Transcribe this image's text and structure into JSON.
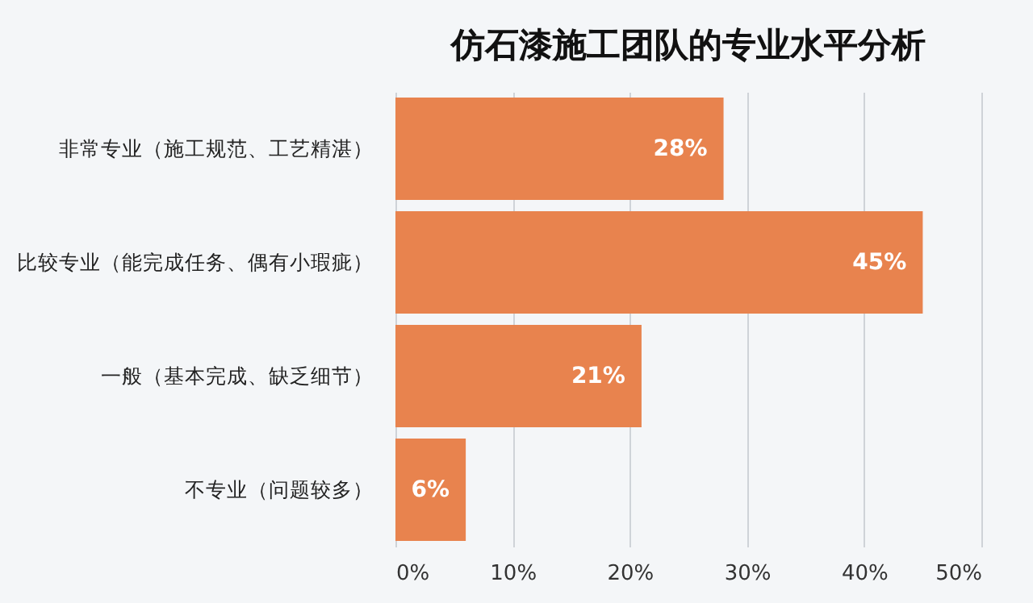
{
  "chart_data": {
    "type": "bar",
    "orientation": "horizontal",
    "title": "仿石漆施工团队的专业水平分析",
    "categories": [
      "非常专业（施工规范、工艺精湛）",
      "比较专业（能完成任务、偶有小瑕疵）",
      "一般（基本完成、缺乏细节）",
      "不专业（问题较多）"
    ],
    "values": [
      28,
      45,
      21,
      6
    ],
    "color": "#e8834e",
    "value_labels": [
      "28%",
      "45%",
      "21%",
      "6%"
    ],
    "xlim": [
      0,
      50
    ],
    "xticks": [
      {
        "value": 0,
        "label": "0%"
      },
      {
        "value": 10,
        "label": "10%"
      },
      {
        "value": 20,
        "label": "20%"
      },
      {
        "value": 30,
        "label": "30%"
      },
      {
        "value": 40,
        "label": "40%"
      },
      {
        "value": 50,
        "label": "50%"
      }
    ],
    "grid": "x"
  }
}
